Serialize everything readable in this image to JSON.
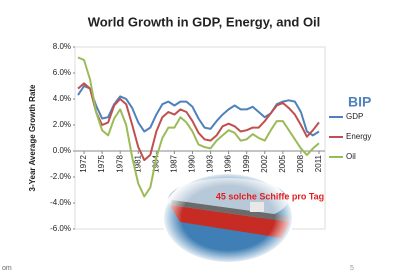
{
  "chart_data": {
    "type": "line",
    "title": "World Growth in GDP, Energy, and Oil",
    "y_label": "3-Year Average Growth Rate",
    "x": [
      1971,
      1972,
      1973,
      1974,
      1975,
      1976,
      1977,
      1978,
      1979,
      1980,
      1981,
      1982,
      1983,
      1984,
      1985,
      1986,
      1987,
      1988,
      1989,
      1990,
      1991,
      1992,
      1993,
      1994,
      1995,
      1996,
      1997,
      1998,
      1999,
      2000,
      2001,
      2002,
      2003,
      2004,
      2005,
      2006,
      2007,
      2008,
      2009,
      2010,
      2011
    ],
    "xlim": [
      1970.5,
      2012
    ],
    "xticks": [
      1972,
      1975,
      1978,
      1981,
      1984,
      1987,
      1990,
      1993,
      1996,
      1999,
      2002,
      2005,
      2008,
      2011
    ],
    "ylim": [
      -6,
      8
    ],
    "yticks": [
      {
        "value": -6,
        "label": "-6.0%"
      },
      {
        "value": -4,
        "label": "-4.0%"
      },
      {
        "value": -2,
        "label": "-2.0%"
      },
      {
        "value": 0,
        "label": "0.0%"
      },
      {
        "value": 2,
        "label": "2.0%"
      },
      {
        "value": 4,
        "label": "4.0%"
      },
      {
        "value": 6,
        "label": "6.0%"
      },
      {
        "value": 8,
        "label": "8.0%"
      }
    ],
    "legend": "right",
    "series": [
      {
        "name": "GDP",
        "color": "#4f81bd",
        "values": [
          4.3,
          5.0,
          4.8,
          3.5,
          2.5,
          2.6,
          3.6,
          4.2,
          4.0,
          3.3,
          2.2,
          1.5,
          1.8,
          2.8,
          3.6,
          3.8,
          3.5,
          3.8,
          3.8,
          3.4,
          2.5,
          1.8,
          1.7,
          2.3,
          2.8,
          3.2,
          3.5,
          3.2,
          3.2,
          3.4,
          3.0,
          2.6,
          2.9,
          3.6,
          3.8,
          3.9,
          3.8,
          3.0,
          1.5,
          1.2,
          1.5
        ]
      },
      {
        "name": "Energy",
        "color": "#c0504d",
        "values": [
          4.8,
          5.2,
          4.8,
          3.0,
          2.0,
          2.2,
          3.5,
          4.0,
          3.6,
          2.0,
          0.3,
          -0.7,
          -0.3,
          1.5,
          2.6,
          3.0,
          2.8,
          3.2,
          3.0,
          2.3,
          1.4,
          0.9,
          0.8,
          1.2,
          1.9,
          2.1,
          1.9,
          1.5,
          1.6,
          1.8,
          1.8,
          2.3,
          2.9,
          3.5,
          3.7,
          3.3,
          2.8,
          2.0,
          1.1,
          1.6,
          2.2
        ]
      },
      {
        "name": "Oil",
        "color": "#9bbb59",
        "values": [
          7.2,
          7.0,
          5.5,
          3.0,
          1.6,
          1.2,
          2.5,
          3.2,
          2.0,
          -0.5,
          -2.5,
          -3.5,
          -2.8,
          -0.5,
          1.0,
          1.8,
          1.8,
          2.6,
          2.2,
          1.5,
          0.5,
          0.3,
          0.2,
          0.8,
          1.2,
          1.6,
          1.4,
          0.8,
          0.9,
          1.3,
          1.0,
          0.8,
          1.6,
          2.3,
          2.3,
          1.6,
          0.9,
          0.2,
          -0.3,
          0.2,
          0.6
        ]
      }
    ],
    "annotations": [
      "BIP",
      "45 solche Schiffe pro Tag"
    ],
    "footer": {
      "left": "om",
      "page": "5"
    }
  }
}
